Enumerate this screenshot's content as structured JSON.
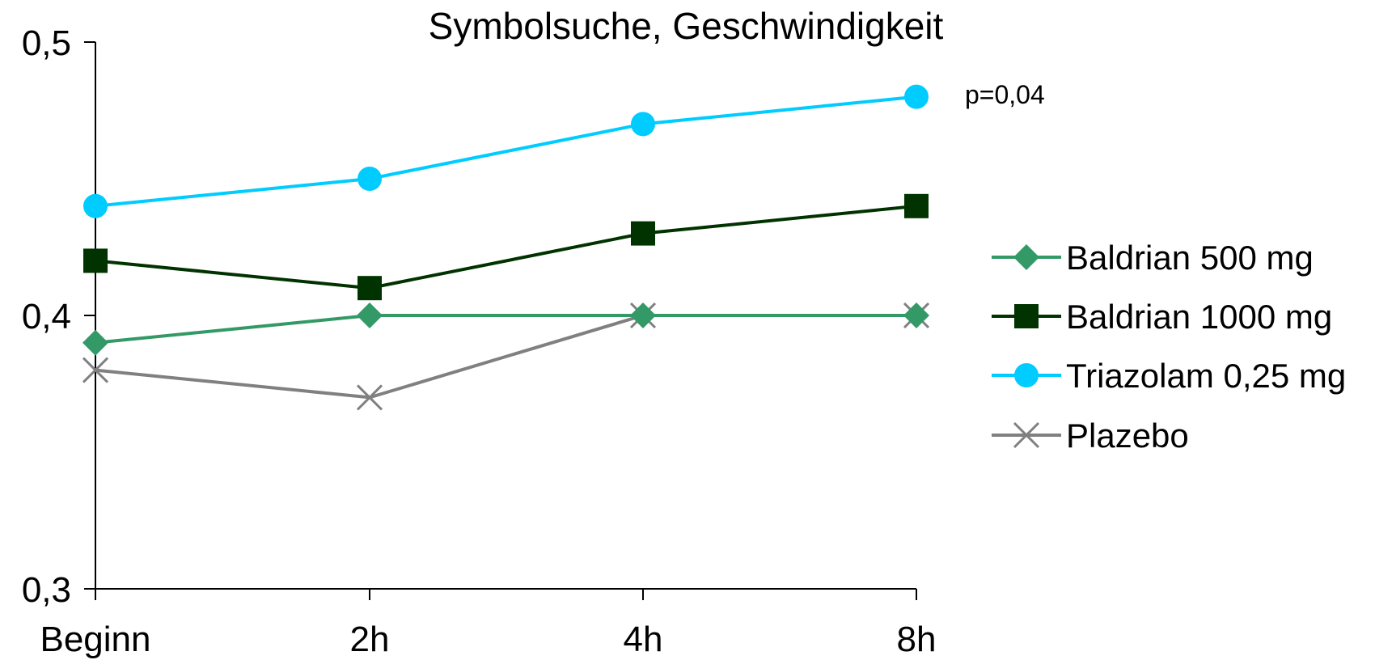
{
  "chart_data": {
    "type": "line",
    "title": "Symbolsuche, Geschwindigkeit",
    "xlabel": "",
    "ylabel": "",
    "categories": [
      "Beginn",
      "2h",
      "4h",
      "8h"
    ],
    "ylim": [
      0.3,
      0.5
    ],
    "yticks": [
      {
        "value": 0.3,
        "label": "0,3"
      },
      {
        "value": 0.4,
        "label": "0,4"
      },
      {
        "value": 0.5,
        "label": "0,5"
      }
    ],
    "grid": false,
    "legend_position": "right",
    "series": [
      {
        "name": "Baldrian 500 mg",
        "values": [
          0.39,
          0.4,
          0.4,
          0.4
        ],
        "color": "#339966",
        "marker": "diamond"
      },
      {
        "name": "Baldrian 1000 mg",
        "values": [
          0.42,
          0.41,
          0.43,
          0.44
        ],
        "color": "#003300",
        "marker": "square"
      },
      {
        "name": "Triazolam 0,25 mg",
        "values": [
          0.44,
          0.45,
          0.47,
          0.48
        ],
        "color": "#00CCFF",
        "marker": "circle"
      },
      {
        "name": "Plazebo",
        "values": [
          0.38,
          0.37,
          0.4,
          0.4
        ],
        "color": "#808080",
        "marker": "x"
      }
    ],
    "annotations": [
      {
        "text": "p=0,04",
        "series": "Triazolam 0,25 mg"
      }
    ]
  }
}
